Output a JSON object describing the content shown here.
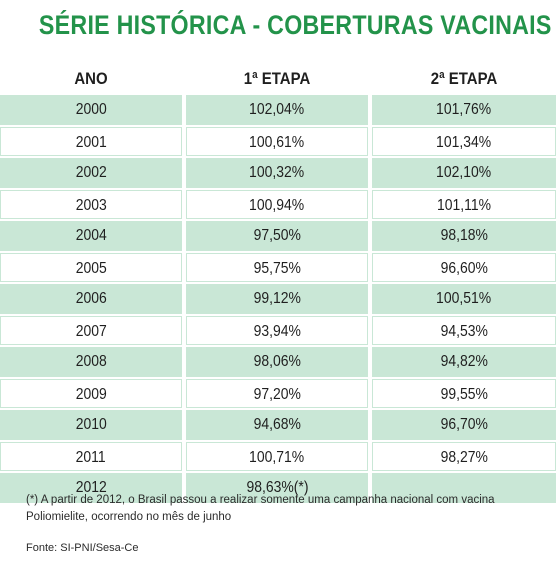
{
  "title": "SÉRIE HISTÓRICA - COBERTURAS VACINAIS",
  "colors": {
    "title": "#23934a",
    "stripe": "#c9e7d6"
  },
  "chart_data": {
    "type": "table",
    "title": "SÉRIE HISTÓRICA - COBERTURAS VACINAIS",
    "columns": [
      "ANO",
      "1ª ETAPA",
      "2ª ETAPA"
    ],
    "rows": [
      [
        "2000",
        "102,04%",
        "101,76%"
      ],
      [
        "2001",
        "100,61%",
        "101,34%"
      ],
      [
        "2002",
        "100,32%",
        "102,10%"
      ],
      [
        "2003",
        "100,94%",
        "101,11%"
      ],
      [
        "2004",
        "97,50%",
        "98,18%"
      ],
      [
        "2005",
        "95,75%",
        "96,60%"
      ],
      [
        "2006",
        "99,12%",
        "100,51%"
      ],
      [
        "2007",
        "93,94%",
        "94,53%"
      ],
      [
        "2008",
        "98,06%",
        "94,82%"
      ],
      [
        "2009",
        "97,20%",
        "99,55%"
      ],
      [
        "2010",
        "94,68%",
        "96,70%"
      ],
      [
        "2011",
        "100,71%",
        "98,27%"
      ],
      [
        "2012",
        "98,63%(*)",
        ""
      ]
    ]
  },
  "footnote": "(*) A partir de 2012, o Brasil passou a realizar somente uma campanha nacional com vacina Poliomielite, ocorrendo no mês de junho",
  "source": "Fonte: SI-PNI/Sesa-Ce"
}
